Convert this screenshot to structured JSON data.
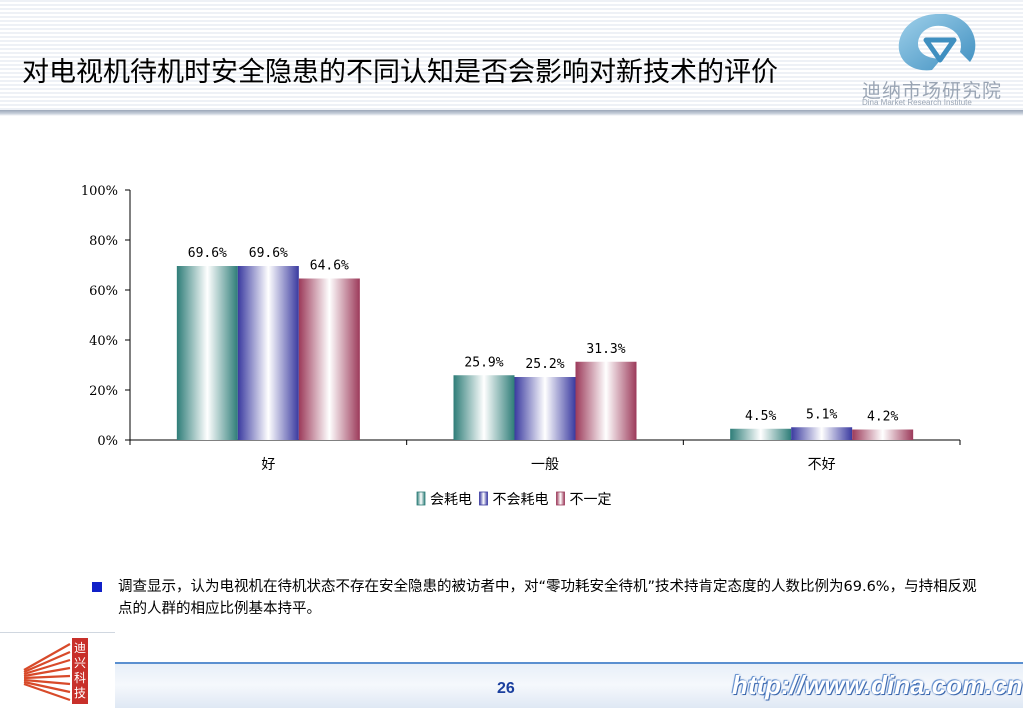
{
  "header": {
    "title": "对电视机待机时安全隐患的不同认知是否会影响对新技术的评价",
    "logo_cn": "迪纳市场研究院",
    "logo_en": "Dina Market Research Institute"
  },
  "chart_data": {
    "type": "bar",
    "categories": [
      "好",
      "一般",
      "不好"
    ],
    "series": [
      {
        "name": "会耗电",
        "values": [
          69.6,
          25.9,
          4.5
        ],
        "value_labels": [
          "69.6%",
          "25.9%",
          "4.5%"
        ],
        "color": "#2e7d78"
      },
      {
        "name": "不会耗电",
        "values": [
          69.6,
          25.2,
          5.1
        ],
        "value_labels": [
          "69.6%",
          "25.2%",
          "5.1%"
        ],
        "color": "#3a3aa0"
      },
      {
        "name": "不一定",
        "values": [
          64.6,
          31.3,
          4.2
        ],
        "value_labels": [
          "64.6%",
          "31.3%",
          "4.2%"
        ],
        "color": "#9c3a5a"
      }
    ],
    "ylim": [
      0,
      100
    ],
    "yticks": [
      0,
      20,
      40,
      60,
      80,
      100
    ],
    "ytick_labels": [
      "0%",
      "20%",
      "40%",
      "60%",
      "80%",
      "100%"
    ],
    "grid": false,
    "legend_position": "bottom"
  },
  "note": {
    "text": "调查显示，认为电视机在待机状态不存在安全隐患的被访者中，对“零功耗安全待机”技术持肯定态度的人数比例为69.6%，与持相反观点的人群的相应比例基本持平。"
  },
  "footer": {
    "page_number": "26",
    "url": "http://www.dina.com.cn",
    "logo_text": [
      "迪",
      "兴",
      "科",
      "技"
    ]
  },
  "colors": {
    "accent_blue": "#1a3f9e",
    "bullet": "#1020c8"
  }
}
